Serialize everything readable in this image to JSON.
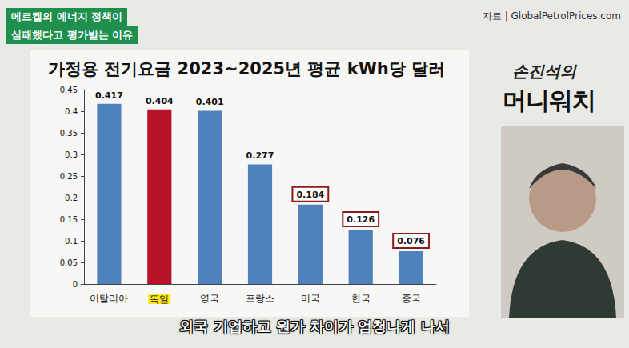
{
  "header": {
    "title_lines": [
      "메르켈의 에너지 정책이",
      "실패했다고 평가받는 이유"
    ],
    "source": "자료 | GlobalPetrolPrices.com"
  },
  "logo": {
    "top": "손진석의",
    "bottom": "머니워치"
  },
  "subtitle": "외국 기업하고 원가 차이가 엄청나게 나서",
  "chart_data": {
    "type": "bar",
    "title": "가정용 전기요금 2023~2025년 평균 kWh당 달러",
    "categories": [
      "이탈리아",
      "독일",
      "영국",
      "프랑스",
      "미국",
      "한국",
      "중국"
    ],
    "values": [
      0.417,
      0.404,
      0.401,
      0.277,
      0.184,
      0.126,
      0.076
    ],
    "colors": [
      "#4f81bd",
      "#b8112a",
      "#4f81bd",
      "#4f81bd",
      "#4f81bd",
      "#4f81bd",
      "#4f81bd"
    ],
    "ylim": [
      0,
      0.45
    ],
    "yticks": [
      0,
      0.05,
      0.1,
      0.15,
      0.2,
      0.25,
      0.3,
      0.35,
      0.4,
      0.45
    ],
    "grid": false,
    "data_labels": true
  }
}
